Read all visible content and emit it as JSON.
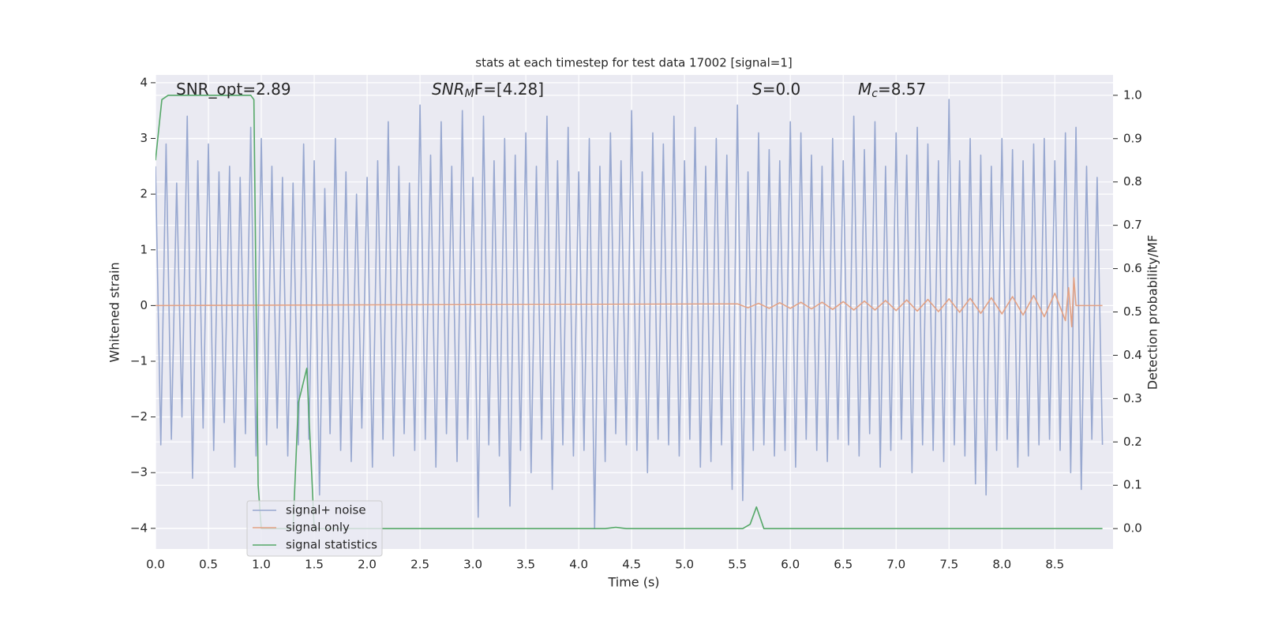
{
  "chart_data": {
    "type": "line",
    "title": "stats at each timestep for test data 17002 [signal=1]",
    "xlabel": "Time (s)",
    "ylabel": "Whitened strain",
    "y2label": "Detection probability/MF",
    "annotations": [
      {
        "text": "SNR_opt=2.89"
      },
      {
        "text": "SNR",
        "sub": "M",
        "rest": "F=[4.28]"
      },
      {
        "text": "S",
        "rest": "=0.0"
      },
      {
        "text": "M",
        "sub": "c",
        "rest": "=8.57"
      }
    ],
    "grid": true,
    "legend": "lower left",
    "xlim": [
      0,
      9.05
    ],
    "ylim": [
      -4.37,
      4.14
    ],
    "y2lim": [
      -0.047,
      1.047
    ],
    "xticks": [
      {
        "value": 0,
        "label": "0.0"
      },
      0.5,
      {
        "value": 1,
        "label": "1.0"
      },
      1.5,
      {
        "value": 2,
        "label": "2.0"
      },
      2.5,
      {
        "value": 3,
        "label": "3.0"
      },
      3.5,
      {
        "value": 4,
        "label": "4.0"
      },
      4.5,
      {
        "value": 5,
        "label": "5.0"
      },
      5.5,
      {
        "value": 6,
        "label": "6.0"
      },
      6.5,
      {
        "value": 7,
        "label": "7.0"
      },
      7.5,
      {
        "value": 8,
        "label": "8.0"
      },
      8.5
    ],
    "yticks": [
      {
        "value": -4,
        "label": "−4"
      },
      {
        "value": -3,
        "label": "−3"
      },
      {
        "value": -2,
        "label": "−2"
      },
      {
        "value": -1,
        "label": "−1"
      },
      0,
      1,
      2,
      3,
      4
    ],
    "y2ticks": [
      {
        "value": 0,
        "label": "0.0"
      },
      0.1,
      0.2,
      0.3,
      0.4,
      0.5,
      0.6,
      0.7,
      0.8,
      0.9,
      {
        "value": 1,
        "label": "1.0"
      }
    ],
    "series": [
      {
        "name": "signal+ noise",
        "color": "#98a8d0",
        "x": [
          0,
          0.05,
          0.1,
          0.15,
          0.2,
          0.25,
          0.3,
          0.35,
          0.4,
          0.45,
          0.5,
          0.55,
          0.6,
          0.65,
          0.7,
          0.75,
          0.8,
          0.85,
          0.9,
          0.95,
          1,
          1.05,
          1.1,
          1.15,
          1.2,
          1.25,
          1.3,
          1.35,
          1.4,
          1.45,
          1.5,
          1.55,
          1.6,
          1.65,
          1.7,
          1.75,
          1.8,
          1.85,
          1.9,
          1.95,
          2,
          2.05,
          2.1,
          2.15,
          2.2,
          2.25,
          2.3,
          2.35,
          2.4,
          2.45,
          2.5,
          2.55,
          2.6,
          2.65,
          2.7,
          2.75,
          2.8,
          2.85,
          2.9,
          2.95,
          3,
          3.05,
          3.1,
          3.15,
          3.2,
          3.25,
          3.3,
          3.35,
          3.4,
          3.45,
          3.5,
          3.55,
          3.6,
          3.65,
          3.7,
          3.75,
          3.8,
          3.85,
          3.9,
          3.95,
          4,
          4.05,
          4.1,
          4.15,
          4.2,
          4.25,
          4.3,
          4.35,
          4.4,
          4.45,
          4.5,
          4.55,
          4.6,
          4.65,
          4.7,
          4.75,
          4.8,
          4.85,
          4.9,
          4.95,
          5,
          5.05,
          5.1,
          5.15,
          5.2,
          5.25,
          5.3,
          5.35,
          5.4,
          5.45,
          5.5,
          5.55,
          5.6,
          5.65,
          5.7,
          5.75,
          5.8,
          5.85,
          5.9,
          5.95,
          6,
          6.05,
          6.1,
          6.15,
          6.2,
          6.25,
          6.3,
          6.35,
          6.4,
          6.45,
          6.5,
          6.55,
          6.6,
          6.65,
          6.7,
          6.75,
          6.8,
          6.85,
          6.9,
          6.95,
          7,
          7.05,
          7.1,
          7.15,
          7.2,
          7.25,
          7.3,
          7.35,
          7.4,
          7.45,
          7.5,
          7.55,
          7.6,
          7.65,
          7.7,
          7.75,
          7.8,
          7.85,
          7.9,
          7.95,
          8,
          8.05,
          8.1,
          8.15,
          8.2,
          8.25,
          8.3,
          8.35,
          8.4,
          8.45,
          8.5,
          8.55,
          8.6,
          8.65,
          8.7,
          8.75,
          8.8,
          8.85,
          8.9,
          8.95
        ],
        "values": [
          2.5,
          -2.5,
          2.9,
          -2.4,
          2.2,
          -2.0,
          3.4,
          -3.1,
          2.6,
          -2.2,
          2.9,
          -2.6,
          2.4,
          -2.1,
          2.5,
          -2.9,
          2.3,
          -2.3,
          3.2,
          -2.7,
          3.0,
          -2.5,
          2.5,
          -2.2,
          2.3,
          -2.7,
          2.2,
          -2.5,
          2.9,
          -2.4,
          2.6,
          -3.4,
          2.1,
          -2.3,
          3.0,
          -2.6,
          2.4,
          -2.8,
          2.0,
          -2.2,
          2.3,
          -2.9,
          2.6,
          -2.4,
          3.3,
          -2.7,
          2.5,
          -2.3,
          2.2,
          -2.6,
          3.6,
          -2.4,
          2.7,
          -2.9,
          3.3,
          -2.3,
          2.5,
          -2.8,
          3.5,
          -2.4,
          2.3,
          -3.8,
          3.4,
          -2.5,
          2.6,
          -2.7,
          3.0,
          -3.6,
          2.7,
          -2.6,
          3.1,
          -3.0,
          2.5,
          -2.4,
          3.4,
          -3.3,
          2.6,
          -2.5,
          3.2,
          -2.7,
          2.4,
          -2.6,
          3.0,
          -4.0,
          2.5,
          -2.8,
          3.1,
          -2.3,
          2.6,
          -2.5,
          3.5,
          -2.6,
          2.4,
          -3.0,
          3.1,
          -2.4,
          2.9,
          -2.5,
          3.4,
          -2.7,
          2.6,
          -2.4,
          3.2,
          -2.9,
          2.5,
          -2.8,
          3.0,
          -2.5,
          2.7,
          -3.3,
          3.6,
          -3.5,
          2.4,
          -2.6,
          3.1,
          -2.5,
          2.8,
          -2.7,
          2.6,
          -2.6,
          3.3,
          -2.9,
          3.1,
          -2.4,
          2.7,
          -2.6,
          2.5,
          -2.8,
          3.0,
          -2.4,
          2.6,
          -2.5,
          3.4,
          -2.7,
          2.8,
          -2.3,
          3.3,
          -2.9,
          2.5,
          -2.6,
          3.1,
          -2.4,
          2.7,
          -3.0,
          3.2,
          -2.5,
          2.9,
          -2.6,
          2.6,
          -2.8,
          3.7,
          -2.5,
          2.6,
          -2.7,
          3.0,
          -3.2,
          2.7,
          -3.4,
          2.5,
          -2.6,
          3.0,
          -2.4,
          2.8,
          -2.9,
          2.6,
          -2.7,
          2.9,
          -2.5,
          3.0,
          -2.4,
          2.6,
          -2.6,
          3.1,
          -3.0,
          3.2,
          -3.3,
          2.5,
          -2.4,
          2.3,
          -2.5
        ]
      },
      {
        "name": "signal only",
        "color": "#e3a285",
        "x": [
          0,
          5.5,
          5.6,
          5.7,
          5.8,
          5.9,
          6,
          6.1,
          6.2,
          6.3,
          6.4,
          6.5,
          6.6,
          6.7,
          6.8,
          6.9,
          7,
          7.1,
          7.2,
          7.3,
          7.4,
          7.5,
          7.6,
          7.7,
          7.8,
          7.9,
          8,
          8.1,
          8.2,
          8.3,
          8.4,
          8.5,
          8.6,
          8.63,
          8.66,
          8.68,
          8.7,
          8.95
        ],
        "values": [
          0,
          0.03,
          -0.04,
          0.04,
          -0.05,
          0.05,
          -0.05,
          0.06,
          -0.06,
          0.06,
          -0.07,
          0.07,
          -0.08,
          0.08,
          -0.08,
          0.09,
          -0.09,
          0.1,
          -0.1,
          0.11,
          -0.11,
          0.12,
          -0.12,
          0.13,
          -0.14,
          0.14,
          -0.15,
          0.16,
          -0.17,
          0.18,
          -0.2,
          0.22,
          -0.27,
          0.32,
          -0.38,
          0.5,
          0,
          0
        ]
      },
      {
        "name": "signal statistics",
        "color": "#55a868",
        "axis": "y2",
        "x": [
          0,
          0.06,
          0.12,
          0.9,
          0.93,
          0.97,
          1.0,
          1.3,
          1.35,
          1.43,
          1.5,
          1.55,
          4.25,
          4.35,
          4.45,
          5.55,
          5.62,
          5.68,
          5.75,
          8.95
        ],
        "values": [
          0.85,
          0.99,
          1.0,
          1.0,
          0.99,
          0.1,
          0.0,
          0.0,
          0.29,
          0.37,
          0.0,
          0.0,
          0.0,
          0.003,
          0.0,
          0.0,
          0.01,
          0.05,
          0.0,
          0.0
        ]
      }
    ]
  }
}
